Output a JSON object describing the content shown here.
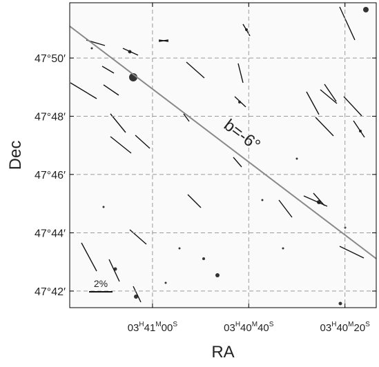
{
  "chart_data": {
    "type": "image",
    "xlabel": "RA",
    "ylabel": "Dec",
    "annotation": "b=-6°",
    "scale_label": "2%",
    "xlim": [
      13277.2,
      13213.5
    ],
    "ylim": [
      47.6905,
      47.8649
    ],
    "xticks": [
      {
        "value": 13260,
        "label": "03H41M00S"
      },
      {
        "value": 13240,
        "label": "03H40M40S"
      },
      {
        "value": 13220,
        "label": "03H40M20S"
      }
    ],
    "yticks": [
      {
        "value": 47.8333,
        "label": "47°50′"
      },
      {
        "value": 47.8,
        "label": "47°48′"
      },
      {
        "value": 47.7667,
        "label": "47°46′"
      },
      {
        "value": 47.7333,
        "label": "47°44′"
      },
      {
        "value": 47.7,
        "label": "47°42′"
      }
    ],
    "grid": true
  }
}
